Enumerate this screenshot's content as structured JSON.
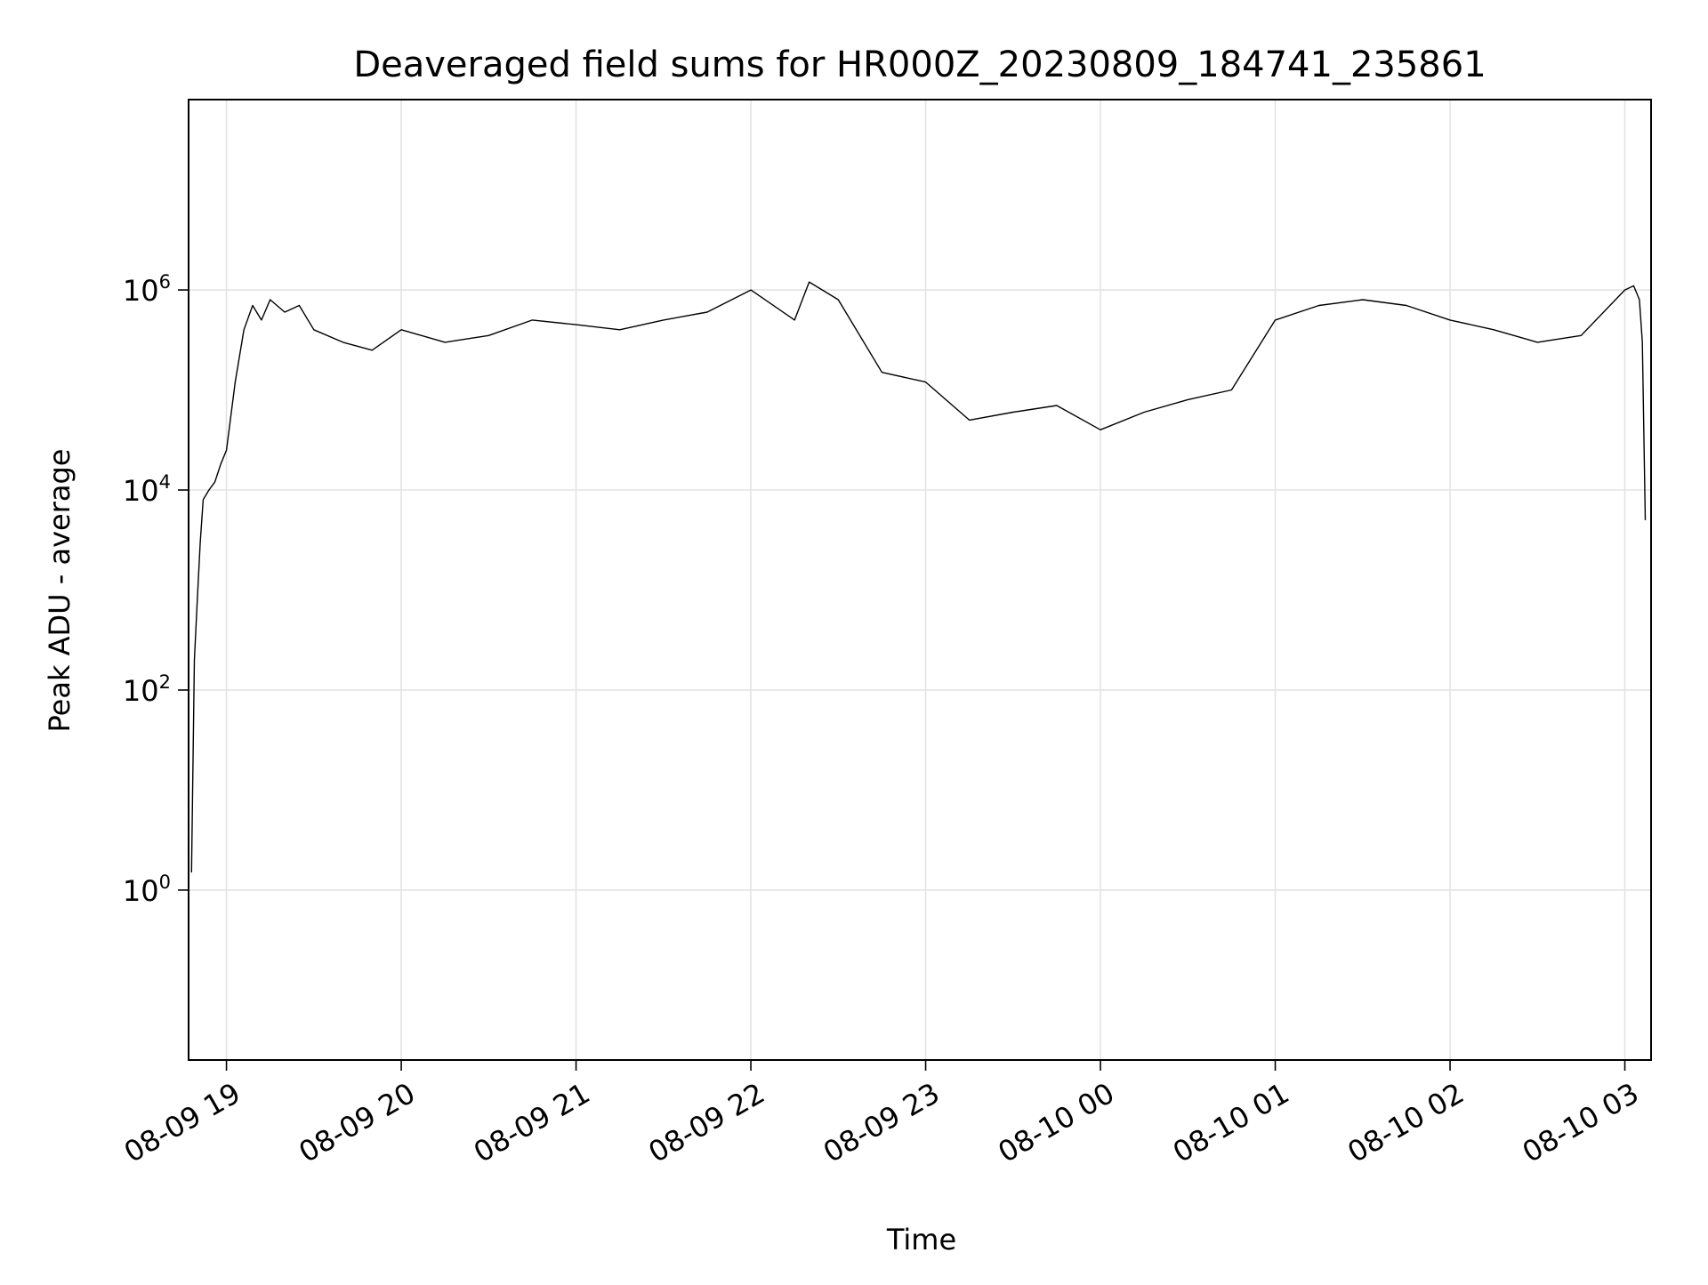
{
  "chart_data": {
    "type": "line",
    "title": "Deaveraged field sums for HR000Z_20230809_184741_235861",
    "xlabel": "Time",
    "ylabel": "Peak ADU - average",
    "y_scale": "log",
    "ylim": [
      0.02,
      80000000.0
    ],
    "xlim": [
      "2023-08-09 18:47",
      "2023-08-10 03:09"
    ],
    "grid": true,
    "x_ticks": [
      {
        "value": "2023-08-09 19:00",
        "label": "08-09 19"
      },
      {
        "value": "2023-08-09 20:00",
        "label": "08-09 20"
      },
      {
        "value": "2023-08-09 21:00",
        "label": "08-09 21"
      },
      {
        "value": "2023-08-09 22:00",
        "label": "08-09 22"
      },
      {
        "value": "2023-08-09 23:00",
        "label": "08-09 23"
      },
      {
        "value": "2023-08-10 00:00",
        "label": "08-10 00"
      },
      {
        "value": "2023-08-10 01:00",
        "label": "08-10 01"
      },
      {
        "value": "2023-08-10 02:00",
        "label": "08-10 02"
      },
      {
        "value": "2023-08-10 03:00",
        "label": "08-10 03"
      }
    ],
    "y_ticks": [
      {
        "value": 1,
        "base": "10",
        "exp": "0"
      },
      {
        "value": 100,
        "base": "10",
        "exp": "2"
      },
      {
        "value": 10000,
        "base": "10",
        "exp": "4"
      },
      {
        "value": 1000000,
        "base": "10",
        "exp": "6"
      }
    ],
    "series": [
      {
        "color": "#000000",
        "x": [
          "2023-08-09 18:48",
          "2023-08-09 18:49",
          "2023-08-09 18:50",
          "2023-08-09 18:51",
          "2023-08-09 18:52",
          "2023-08-09 18:54",
          "2023-08-09 18:56",
          "2023-08-09 18:58",
          "2023-08-09 19:00",
          "2023-08-09 19:03",
          "2023-08-09 19:06",
          "2023-08-09 19:09",
          "2023-08-09 19:12",
          "2023-08-09 19:15",
          "2023-08-09 19:20",
          "2023-08-09 19:25",
          "2023-08-09 19:30",
          "2023-08-09 19:40",
          "2023-08-09 19:50",
          "2023-08-09 20:00",
          "2023-08-09 20:15",
          "2023-08-09 20:30",
          "2023-08-09 20:45",
          "2023-08-09 21:00",
          "2023-08-09 21:15",
          "2023-08-09 21:30",
          "2023-08-09 21:45",
          "2023-08-09 22:00",
          "2023-08-09 22:15",
          "2023-08-09 22:20",
          "2023-08-09 22:30",
          "2023-08-09 22:45",
          "2023-08-09 23:00",
          "2023-08-09 23:15",
          "2023-08-09 23:30",
          "2023-08-09 23:45",
          "2023-08-10 00:00",
          "2023-08-10 00:15",
          "2023-08-10 00:30",
          "2023-08-10 00:45",
          "2023-08-10 01:00",
          "2023-08-10 01:15",
          "2023-08-10 01:30",
          "2023-08-10 01:45",
          "2023-08-10 02:00",
          "2023-08-10 02:15",
          "2023-08-10 02:30",
          "2023-08-10 02:45",
          "2023-08-10 03:00",
          "2023-08-10 03:03",
          "2023-08-10 03:05",
          "2023-08-10 03:06",
          "2023-08-10 03:07"
        ],
        "y": [
          1.5,
          200,
          800,
          3000,
          8000,
          10000,
          12000,
          18000,
          25000,
          120000,
          400000,
          700000,
          500000,
          800000,
          600000,
          700000,
          400000,
          300000,
          250000,
          400000,
          300000,
          350000,
          500000,
          450000,
          400000,
          500000,
          600000,
          1000000,
          500000,
          1200000,
          800000,
          150000,
          120000,
          50000,
          60000,
          70000,
          40000,
          60000,
          80000,
          100000,
          500000,
          700000,
          800000,
          700000,
          500000,
          400000,
          300000,
          350000,
          1000000,
          1100000,
          800000,
          300000,
          5000
        ]
      }
    ]
  }
}
